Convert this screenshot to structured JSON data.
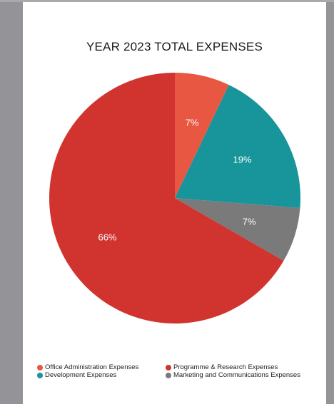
{
  "chart_data": {
    "type": "pie",
    "title": "YEAR 2023 TOTAL EXPENSES",
    "slices": [
      {
        "name": "Office Administration Expenses",
        "value": 7,
        "label": "7%",
        "color": "#E85742"
      },
      {
        "name": "Development Expenses",
        "value": 19,
        "label": "19%",
        "color": "#17959A"
      },
      {
        "name": "Marketing and Communications Expenses",
        "value": 7,
        "label": "7%",
        "color": "#7A7A7A"
      },
      {
        "name": "Programme & Research Expenses",
        "value": 66,
        "label": "66%",
        "color": "#D1342F"
      }
    ],
    "legend": {
      "placement": "bottom",
      "order": [
        "Office Administration Expenses",
        "Programme & Research Expenses",
        "Development Expenses",
        "Marketing and Communications Expenses"
      ]
    }
  }
}
